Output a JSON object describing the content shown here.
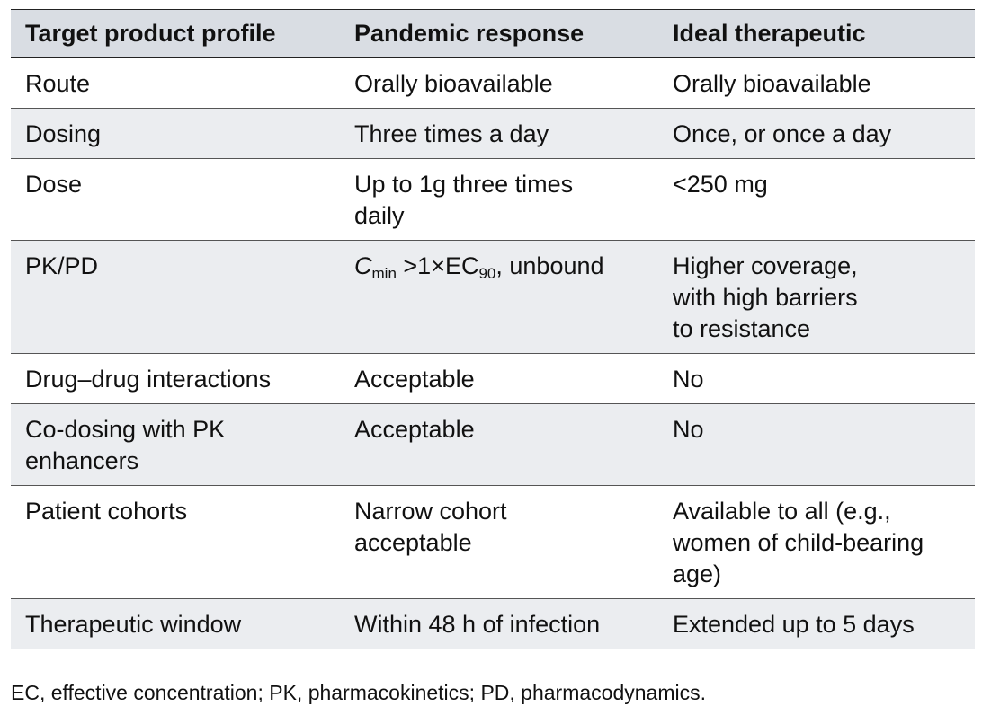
{
  "table": {
    "headers": [
      "Target product profile",
      "Pandemic response",
      "Ideal therapeutic"
    ],
    "rows": [
      {
        "profile": "Route",
        "pandemic": "Orally bioavailable",
        "ideal": "Orally bioavailable"
      },
      {
        "profile": "Dosing",
        "pandemic": "Three times a day",
        "ideal": "Once, or once a day"
      },
      {
        "profile": "Dose",
        "pandemic": "Up to 1g three times\ndaily",
        "ideal": "<250 mg"
      },
      {
        "profile": "PK/PD",
        "pandemic_parts": {
          "c": "C",
          "c_sub": "min",
          "mid": " >1×EC",
          "ec_sub": "90",
          "tail": ", unbound"
        },
        "ideal": "Higher coverage,\nwith high barriers\nto resistance"
      },
      {
        "profile": "Drug–drug interactions",
        "pandemic": "Acceptable",
        "ideal": "No"
      },
      {
        "profile": "Co-dosing with PK\nenhancers",
        "pandemic": "Acceptable",
        "ideal": "No"
      },
      {
        "profile": "Patient cohorts",
        "pandemic": "Narrow cohort\nacceptable",
        "ideal": "Available to all (e.g.,\nwomen of child-bearing\nage)"
      },
      {
        "profile": "Therapeutic window",
        "pandemic": "Within 48 h of infection",
        "ideal": "Extended up to 5 days"
      }
    ]
  },
  "footnote": "EC, effective concentration; PK, pharmacokinetics; PD, pharmacodynamics."
}
